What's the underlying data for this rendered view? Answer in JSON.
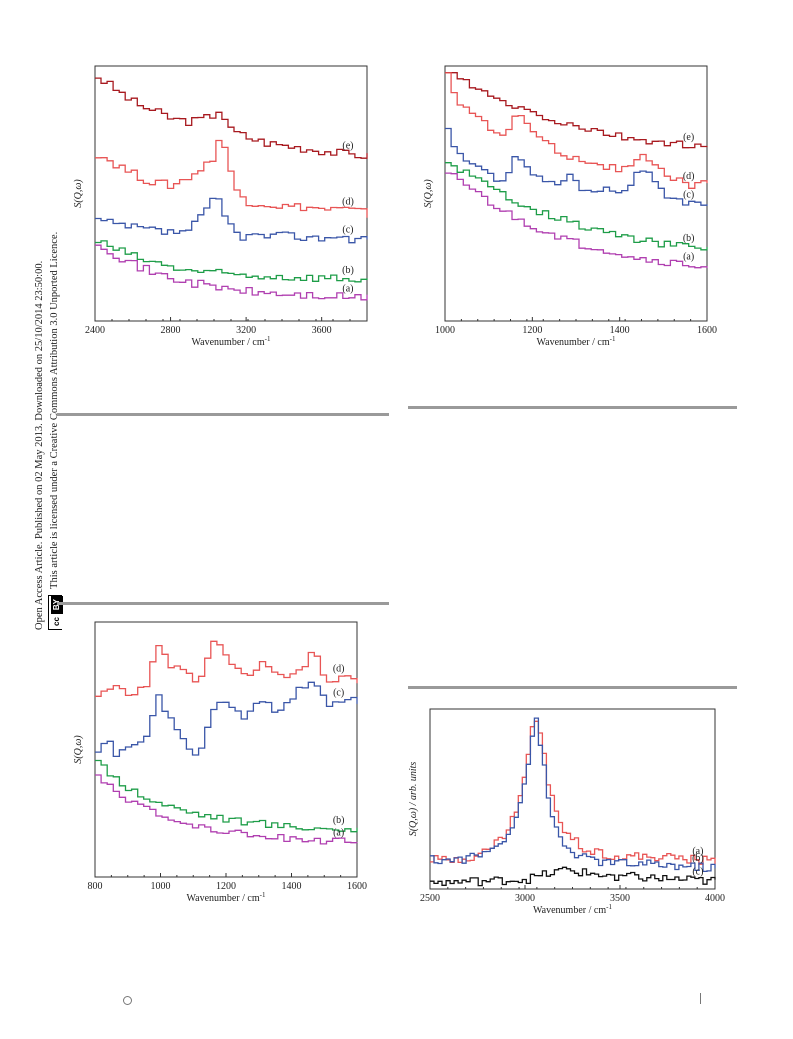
{
  "sidebar": {
    "line1": "Open Access Article. Published on 02 May 2013. Downloaded on 25/10/2014 23:50:00.",
    "line2": "This article is licensed under a Creative Commons Attribution 3.0 Unported Licence.",
    "badge_cc": "cc",
    "badge_by": "BY"
  },
  "chart_data": [
    {
      "type": "line",
      "title": "",
      "xlabel": "Wavenumber / cm⁻¹",
      "ylabel": "S(Q,ω)",
      "xlim": [
        2400,
        3840
      ],
      "xticks": [
        2400,
        2800,
        3200,
        3600
      ],
      "grid": false,
      "series": [
        {
          "name": "(e)",
          "color": "#a8191f",
          "x": [
            2400,
            2500,
            2600,
            2700,
            2800,
            2900,
            3000,
            3050,
            3100,
            3200,
            3300,
            3400,
            3500,
            3600,
            3700,
            3800,
            3840
          ],
          "y": [
            4.6,
            4.35,
            4.1,
            3.95,
            3.8,
            3.75,
            3.85,
            4.0,
            3.6,
            3.45,
            3.35,
            3.3,
            3.25,
            3.2,
            3.15,
            3.12,
            3.1
          ]
        },
        {
          "name": "(d)",
          "color": "#e85555",
          "x": [
            2400,
            2500,
            2600,
            2700,
            2800,
            2900,
            3000,
            3050,
            3080,
            3120,
            3200,
            3300,
            3400,
            3500,
            3600,
            3700,
            3800,
            3840
          ],
          "y": [
            3.15,
            2.95,
            2.75,
            2.6,
            2.55,
            2.75,
            3.0,
            3.5,
            3.2,
            2.5,
            2.25,
            2.2,
            2.15,
            2.15,
            2.1,
            2.1,
            2.05,
            2.0
          ]
        },
        {
          "name": "(c)",
          "color": "#3a56a8",
          "x": [
            2400,
            2500,
            2600,
            2700,
            2800,
            2900,
            2980,
            3030,
            3080,
            3150,
            3250,
            3350,
            3450,
            3550,
            3650,
            3750,
            3840
          ],
          "y": [
            1.9,
            1.8,
            1.75,
            1.7,
            1.65,
            1.75,
            2.1,
            2.35,
            1.9,
            1.6,
            1.6,
            1.6,
            1.6,
            1.55,
            1.6,
            1.55,
            1.55
          ]
        },
        {
          "name": "(b)",
          "color": "#1e9d48",
          "x": [
            2400,
            2500,
            2600,
            2700,
            2800,
            2900,
            3000,
            3100,
            3200,
            3300,
            3400,
            3500,
            3600,
            3700,
            3840
          ],
          "y": [
            1.5,
            1.35,
            1.2,
            1.1,
            1.0,
            0.95,
            0.9,
            0.88,
            0.85,
            0.85,
            0.83,
            0.82,
            0.82,
            0.8,
            0.78
          ]
        },
        {
          "name": "(a)",
          "color": "#b03fb0",
          "x": [
            2400,
            2500,
            2600,
            2700,
            2800,
            2900,
            3000,
            3100,
            3200,
            3300,
            3400,
            3500,
            3600,
            3700,
            3840
          ],
          "y": [
            1.5,
            1.25,
            1.05,
            0.9,
            0.8,
            0.72,
            0.65,
            0.6,
            0.55,
            0.52,
            0.5,
            0.48,
            0.46,
            0.45,
            0.43
          ]
        }
      ]
    },
    {
      "type": "line",
      "title": "",
      "xlabel": "Wavenumber / cm⁻¹",
      "ylabel": "S(Q,ω)",
      "xlim": [
        1000,
        1600
      ],
      "xticks": [
        1000,
        1200,
        1400,
        1600
      ],
      "grid": false,
      "series": [
        {
          "name": "(e)",
          "color": "#a8191f",
          "x": [
            1000,
            1050,
            1100,
            1150,
            1200,
            1250,
            1300,
            1350,
            1400,
            1450,
            1500,
            1550,
            1600
          ],
          "y": [
            4.7,
            4.45,
            4.2,
            4.05,
            3.9,
            3.75,
            3.65,
            3.55,
            3.45,
            3.4,
            3.35,
            3.3,
            3.25
          ]
        },
        {
          "name": "(d)",
          "color": "#e85555",
          "x": [
            1000,
            1030,
            1060,
            1100,
            1130,
            1160,
            1200,
            1250,
            1300,
            1350,
            1400,
            1450,
            1500,
            1550,
            1600
          ],
          "y": [
            4.6,
            4.1,
            3.9,
            3.6,
            3.5,
            3.95,
            3.5,
            3.2,
            3.05,
            2.95,
            2.85,
            3.1,
            2.75,
            2.55,
            2.6
          ]
        },
        {
          "name": "(c)",
          "color": "#3a56a8",
          "x": [
            1000,
            1020,
            1050,
            1100,
            1130,
            1160,
            1200,
            1250,
            1280,
            1300,
            1350,
            1400,
            1450,
            1500,
            1550,
            1600
          ],
          "y": [
            3.6,
            3.2,
            3.0,
            2.7,
            2.7,
            3.15,
            2.7,
            2.6,
            2.8,
            2.5,
            2.5,
            2.45,
            2.9,
            2.3,
            2.2,
            2.25
          ]
        },
        {
          "name": "(b)",
          "color": "#1e9d48",
          "x": [
            1000,
            1050,
            1100,
            1150,
            1200,
            1250,
            1300,
            1350,
            1400,
            1450,
            1500,
            1550,
            1600
          ],
          "y": [
            3.0,
            2.75,
            2.5,
            2.3,
            2.1,
            1.95,
            1.8,
            1.7,
            1.6,
            1.5,
            1.45,
            1.4,
            1.35
          ]
        },
        {
          "name": "(a)",
          "color": "#b03fb0",
          "x": [
            1000,
            1050,
            1100,
            1150,
            1200,
            1250,
            1300,
            1350,
            1400,
            1450,
            1500,
            1550,
            1600
          ],
          "y": [
            2.85,
            2.5,
            2.2,
            1.95,
            1.75,
            1.6,
            1.45,
            1.35,
            1.25,
            1.15,
            1.1,
            1.05,
            1.0
          ]
        }
      ]
    },
    {
      "type": "line",
      "title": "",
      "xlabel": "Wavenumber / cm⁻¹",
      "ylabel": "S(Q,ω)",
      "xlim": [
        800,
        1600
      ],
      "xticks": [
        800,
        1000,
        1200,
        1400,
        1600
      ],
      "grid": false,
      "series": [
        {
          "name": "(d)",
          "color": "#e85555",
          "x": [
            800,
            850,
            900,
            950,
            985,
            1020,
            1060,
            1100,
            1130,
            1160,
            1200,
            1250,
            1300,
            1350,
            1400,
            1460,
            1500,
            1550,
            1600
          ],
          "y": [
            3.0,
            3.2,
            2.9,
            3.2,
            3.8,
            3.5,
            3.4,
            3.2,
            3.5,
            4.0,
            3.5,
            3.3,
            3.5,
            3.3,
            3.3,
            3.7,
            3.2,
            3.3,
            3.2
          ]
        },
        {
          "name": "(c)",
          "color": "#3a56a8",
          "x": [
            800,
            830,
            860,
            900,
            950,
            985,
            1030,
            1070,
            1110,
            1160,
            1200,
            1250,
            1300,
            1350,
            1400,
            1460,
            1500,
            1550,
            1600
          ],
          "y": [
            2.0,
            2.3,
            2.0,
            2.1,
            2.3,
            3.0,
            2.5,
            2.2,
            2.0,
            2.9,
            2.8,
            2.6,
            2.9,
            2.7,
            3.0,
            3.3,
            2.8,
            2.9,
            2.9
          ]
        },
        {
          "name": "(b)",
          "color": "#1e9d48",
          "x": [
            800,
            850,
            900,
            950,
            1000,
            1100,
            1200,
            1300,
            1400,
            1500,
            1600
          ],
          "y": [
            1.9,
            1.65,
            1.45,
            1.3,
            1.2,
            1.05,
            0.95,
            0.88,
            0.83,
            0.8,
            0.78
          ]
        },
        {
          "name": "(a)",
          "color": "#b03fb0",
          "x": [
            800,
            850,
            900,
            950,
            1000,
            1100,
            1200,
            1300,
            1400,
            1500,
            1600
          ],
          "y": [
            1.7,
            1.45,
            1.25,
            1.1,
            0.98,
            0.85,
            0.75,
            0.68,
            0.63,
            0.6,
            0.57
          ]
        }
      ]
    },
    {
      "type": "line",
      "title": "",
      "xlabel": "Wavenumber / cm⁻¹",
      "ylabel": "S(Q,ω) / arb. units",
      "xlim": [
        2500,
        4000
      ],
      "xticks": [
        2500,
        3000,
        3500,
        4000
      ],
      "grid": false,
      "series": [
        {
          "name": "(a)",
          "color": "#e85555",
          "x": [
            2500,
            2600,
            2700,
            2800,
            2900,
            2950,
            3000,
            3030,
            3050,
            3080,
            3120,
            3200,
            3300,
            3400,
            3500,
            3600,
            3700,
            3800,
            3900,
            4000
          ],
          "y": [
            0.45,
            0.45,
            0.5,
            0.6,
            0.9,
            1.3,
            1.9,
            2.55,
            2.65,
            2.3,
            1.5,
            0.9,
            0.65,
            0.55,
            0.5,
            0.5,
            0.5,
            0.48,
            0.45,
            0.43
          ]
        },
        {
          "name": "(b)",
          "color": "#3a56a8",
          "x": [
            2500,
            2600,
            2700,
            2800,
            2900,
            2950,
            3000,
            3030,
            3050,
            3080,
            3120,
            3200,
            3300,
            3400,
            3500,
            3600,
            3700,
            3800,
            3900,
            4000
          ],
          "y": [
            0.45,
            0.45,
            0.48,
            0.58,
            0.85,
            1.2,
            1.8,
            2.45,
            2.6,
            2.15,
            1.2,
            0.65,
            0.48,
            0.42,
            0.4,
            0.38,
            0.38,
            0.36,
            0.34,
            0.33
          ]
        },
        {
          "name": "(c)",
          "color": "#111111",
          "x": [
            2500,
            2600,
            2700,
            2800,
            2900,
            3000,
            3100,
            3200,
            3300,
            3400,
            3500,
            3600,
            3700,
            3800,
            3900,
            4000
          ],
          "y": [
            0.1,
            0.1,
            0.12,
            0.12,
            0.14,
            0.15,
            0.22,
            0.3,
            0.25,
            0.22,
            0.2,
            0.18,
            0.16,
            0.15,
            0.13,
            0.12
          ]
        }
      ]
    }
  ]
}
